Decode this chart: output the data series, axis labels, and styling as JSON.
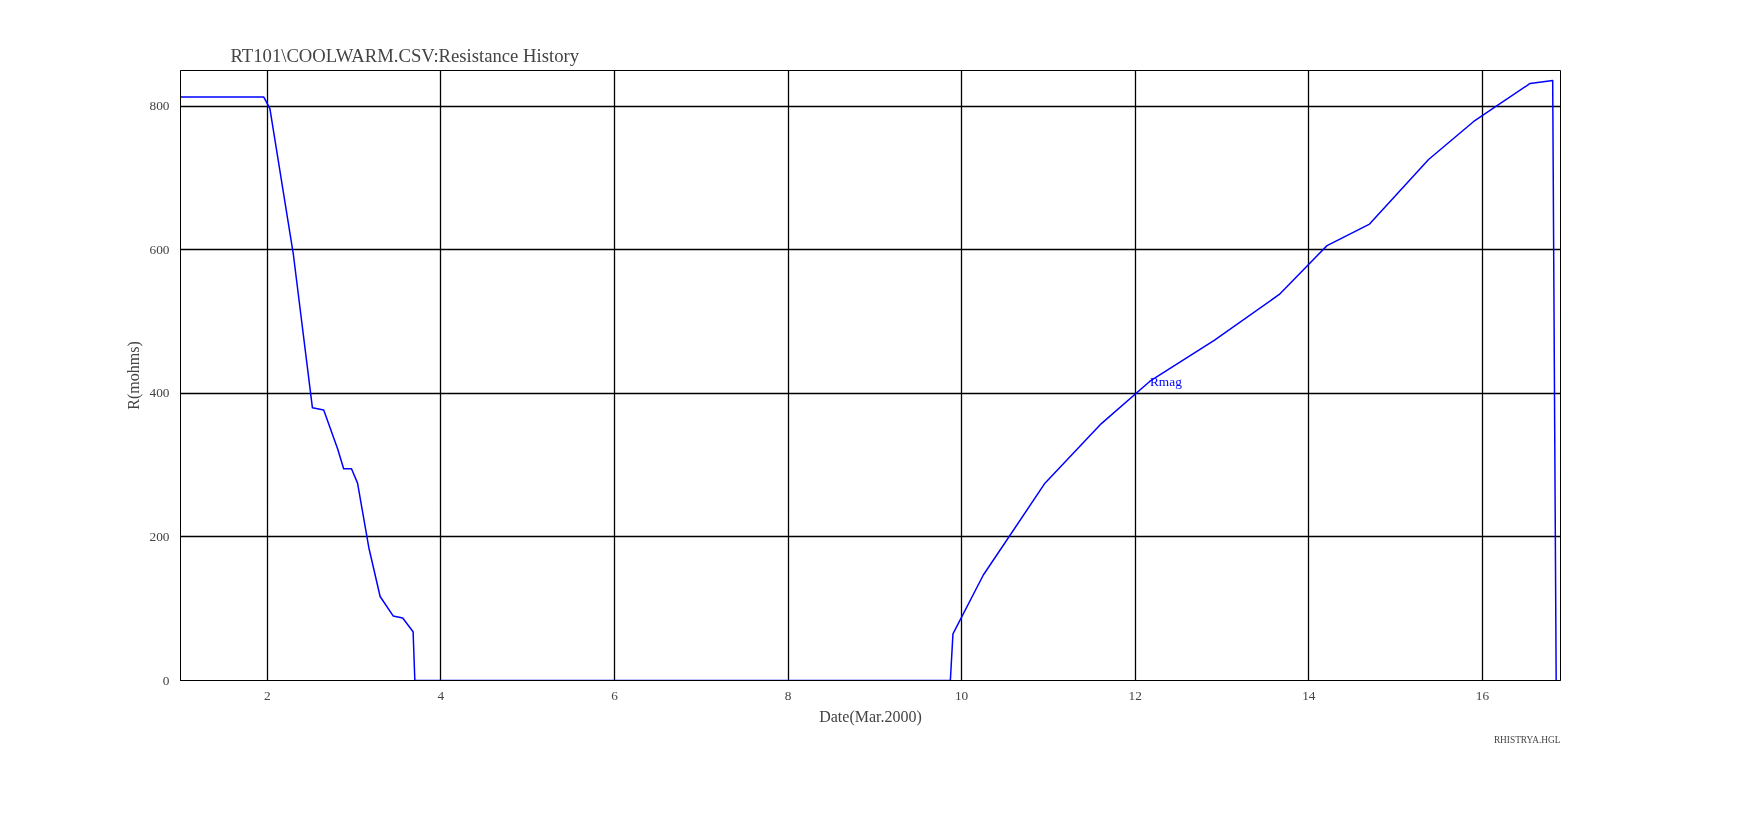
{
  "chart_data": {
    "type": "line",
    "title": "RT101\\COOLWARM.CSV:Resistance History",
    "xlabel": "Date(Mar.2000)",
    "ylabel": "R(mohms)",
    "x": [
      1.0,
      1.96,
      2.03,
      2.3,
      2.52,
      2.65,
      2.81,
      2.88,
      2.97,
      3.04,
      3.17,
      3.3,
      3.45,
      3.56,
      3.68,
      3.7,
      9.87,
      9.9,
      10.25,
      10.96,
      11.61,
      12.17,
      12.91,
      13.66,
      14.21,
      14.7,
      15.38,
      15.9,
      16.55,
      16.81,
      16.85
    ],
    "series": [
      {
        "color": "#0000ff",
        "values": [
          813,
          813,
          797,
          594,
          380,
          377,
          323,
          295,
          295,
          275,
          185,
          117,
          90,
          87,
          68,
          0,
          0,
          65,
          147,
          275,
          358,
          417,
          474,
          538,
          606,
          636,
          726,
          779,
          832,
          836,
          0
        ]
      }
    ],
    "xlim": [
      1,
      16.9
    ],
    "xticks": [
      2,
      4,
      6,
      8,
      10,
      12,
      14,
      16
    ],
    "ylim": [
      0,
      850
    ],
    "yticks": [
      0,
      200,
      400,
      600,
      800
    ],
    "grid": true,
    "marker": "none",
    "line_style": "solid",
    "annotations": [
      {
        "text": "Rmag",
        "x": 12.17,
        "y": 417
      },
      "RHISTRYA.HGL"
    ]
  }
}
